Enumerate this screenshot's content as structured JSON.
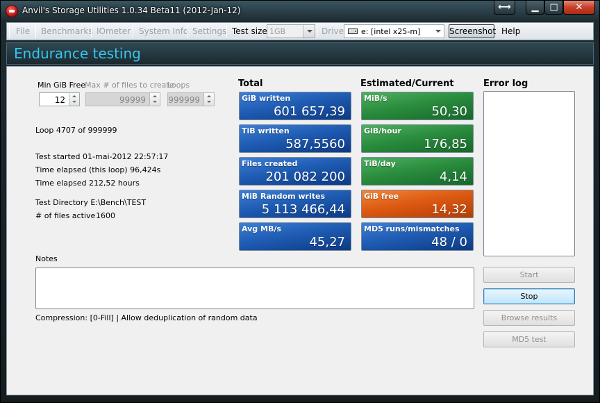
{
  "window": {
    "title": "Anvil's Storage Utilities 1.0.34 Beta11 (2012-Jan-12)",
    "resize_glyph": "⟷",
    "min_glyph": "▁",
    "max_glyph": "□",
    "close_glyph": "✕"
  },
  "menubar": {
    "file": "File",
    "benchmarks": "Benchmarks",
    "iometer": "IOmeter",
    "system_info": "System Info",
    "settings": "Settings",
    "test_size_label": "Test size",
    "test_size_value": "1GB",
    "drive_label": "Drive",
    "drive_value": "e: [intel x25-m]",
    "screenshot": "Screenshot",
    "help": "Help"
  },
  "heading": "Endurance testing",
  "settings": {
    "min_gib_free_label": "Min GiB Free",
    "min_gib_free_value": "12",
    "max_files_label": "Max # of files to create",
    "max_files_value": "99999",
    "loops_label": "Loops",
    "loops_value": "999999"
  },
  "status": {
    "loop": "Loop 4707 of 999999",
    "test_started": "Test started 01-mai-2012 22:57:17",
    "time_elapsed_loop": "Time elapsed (this loop) 96,424s",
    "time_elapsed": "Time elapsed 212,52 hours",
    "test_directory": "Test Directory E:\\Bench\\TEST",
    "files_active_label": "# of files active",
    "files_active_value": "1600"
  },
  "total": {
    "title": "Total",
    "tiles": [
      {
        "label": "GiB written",
        "value": "601 657,39"
      },
      {
        "label": "TiB written",
        "value": "587,5560"
      },
      {
        "label": "Files created",
        "value": "201 082 200"
      },
      {
        "label": "MiB Random writes",
        "value": "5 113 466,44"
      },
      {
        "label": "Avg MB/s",
        "value": "45,27"
      }
    ]
  },
  "estimated": {
    "title": "Estimated/Current",
    "tiles": [
      {
        "label": "MiB/s",
        "value": "50,30"
      },
      {
        "label": "GiB/hour",
        "value": "176,85"
      },
      {
        "label": "TiB/day",
        "value": "4,14"
      },
      {
        "label": "GiB free",
        "value": "14,32"
      },
      {
        "label": "MD5 runs/mismatches",
        "value": "48 / 0"
      }
    ]
  },
  "error_log": {
    "title": "Error log"
  },
  "notes": {
    "label": "Notes",
    "compression": "Compression: [0-Fill] | Allow deduplication of random data"
  },
  "buttons": {
    "start": "Start",
    "stop": "Stop",
    "browse_results": "Browse results",
    "md5_test": "MD5 test"
  },
  "colors": {
    "heading_text": "#35c6ee",
    "tile_blue": "#1f5cb3",
    "tile_green": "#2b8d3e",
    "tile_orange": "#dd5a12"
  }
}
